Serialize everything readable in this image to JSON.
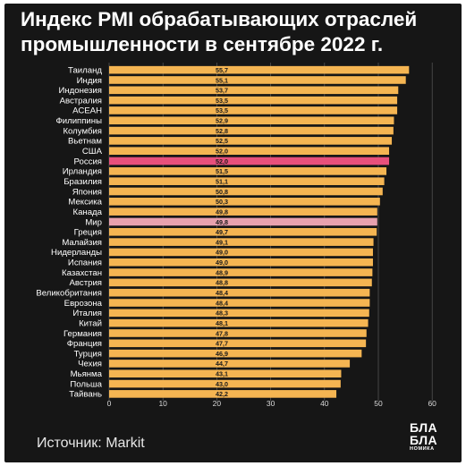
{
  "title_line1": "Индекс PMI обрабатывающих отраслей",
  "title_line2": "промышленности в сентябре 2022 г.",
  "source": "Источник: Markit",
  "logo": {
    "line1": "БЛА",
    "line2": "БЛА",
    "line3": "НОМИКА"
  },
  "colors": {
    "background": "#161616",
    "bar": "#f5b552",
    "highlight": "#e8507c",
    "world": "#e8a1ae",
    "text": "#ffffff",
    "grid": "#5a5a5a"
  },
  "chart_data": {
    "type": "bar",
    "orientation": "horizontal",
    "categories": [
      "Таиланд",
      "Индия",
      "Индонезия",
      "Австралия",
      "АСЕАН",
      "Филиппины",
      "Колумбия",
      "Вьетнам",
      "США",
      "Россия",
      "Ирландия",
      "Бразилия",
      "Япония",
      "Мексика",
      "Канада",
      "Мир",
      "Греция",
      "Малайзия",
      "Нидерланды",
      "Испания",
      "Казахстан",
      "Австрия",
      "Великобритания",
      "Еврозона",
      "Италия",
      "Китай",
      "Германия",
      "Франция",
      "Турция",
      "Чехия",
      "Мьянма",
      "Польша",
      "Тайвань"
    ],
    "values": [
      55.7,
      55.1,
      53.7,
      53.5,
      53.5,
      52.9,
      52.8,
      52.5,
      52.0,
      52.0,
      51.5,
      51.1,
      50.8,
      50.3,
      49.8,
      49.8,
      49.7,
      49.1,
      49.0,
      49.0,
      48.9,
      48.8,
      48.4,
      48.4,
      48.3,
      48.1,
      47.8,
      47.7,
      46.9,
      44.7,
      43.1,
      43.0,
      42.2
    ],
    "labels": [
      "55,7",
      "55,1",
      "53,7",
      "53,5",
      "53,5",
      "52,9",
      "52,8",
      "52,5",
      "52,0",
      "52,0",
      "51,5",
      "51,1",
      "50,8",
      "50,3",
      "49,8",
      "49,8",
      "49,7",
      "49,1",
      "49,0",
      "49,0",
      "48,9",
      "48,8",
      "48,4",
      "48,4",
      "48,3",
      "48,1",
      "47,8",
      "47,7",
      "46,9",
      "44,7",
      "43,1",
      "43,0",
      "42,2"
    ],
    "highlight": {
      "Россия": "highlight",
      "Мир": "world"
    },
    "xlim": [
      0,
      60
    ],
    "xticks": [
      0,
      10,
      20,
      30,
      40,
      50,
      60
    ],
    "grid": true
  }
}
